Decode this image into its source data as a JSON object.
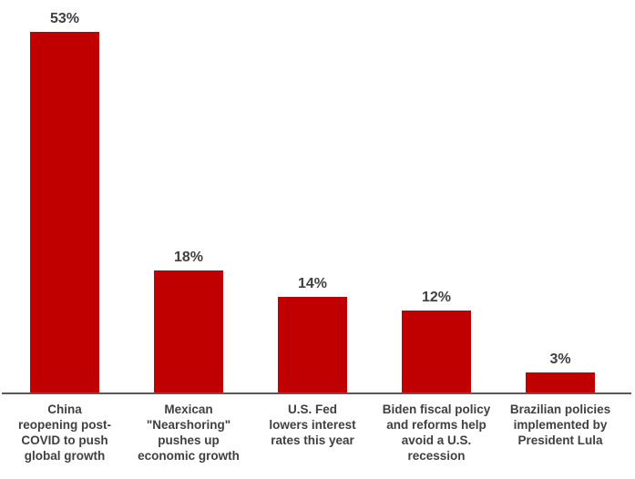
{
  "chart_data": {
    "type": "bar",
    "categories": [
      "China\nreopening post-\nCOVID to push\nglobal growth",
      "Mexican\n\"Nearshoring\"\npushes up\neconomic growth",
      "U.S. Fed\nlowers interest\nrates this year",
      "Biden fiscal policy\nand reforms help\navoid a U.S.\nrecession",
      "Brazilian policies\nimplemented by\nPresident Lula"
    ],
    "values": [
      53,
      18,
      14,
      12,
      3
    ],
    "value_labels": [
      "53%",
      "18%",
      "14%",
      "12%",
      "3%"
    ],
    "ylim": [
      0,
      57.7
    ],
    "grid": false,
    "legend": false,
    "bar_color": "#c00000",
    "axis_line_color": "#595959",
    "label_color": "#404040"
  }
}
